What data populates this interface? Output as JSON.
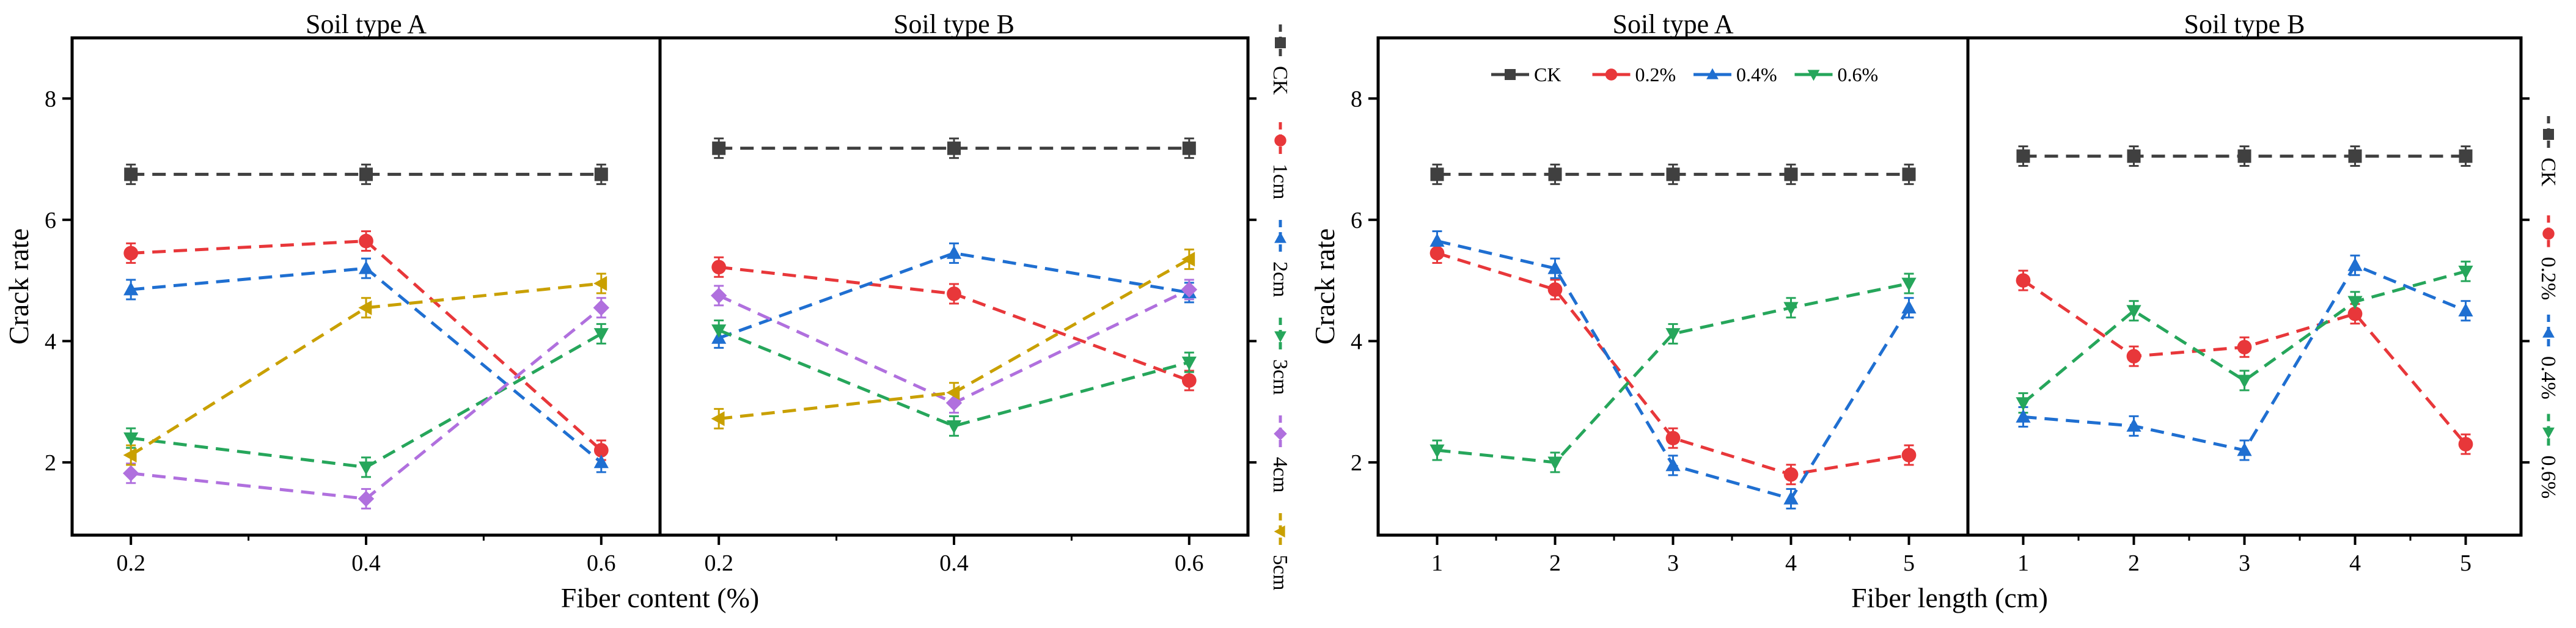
{
  "chart_data": [
    {
      "type": "line",
      "id": "left",
      "xlabel": "Fiber content (%)",
      "ylabel": "Crack rate",
      "ylim": [
        0.8,
        9.0
      ],
      "yticks": [
        2,
        4,
        6,
        8
      ],
      "xlim": [
        0.15,
        0.65
      ],
      "xticks": [
        0.2,
        0.4,
        0.6
      ],
      "xtick_labels": [
        "0.2",
        "0.4",
        "0.6"
      ],
      "legend_position": "right, vertical",
      "panels": [
        {
          "title": "Soil type A",
          "series": [
            {
              "name": "CK",
              "color": "#404040",
              "marker": "square",
              "x": [
                0.2,
                0.4,
                0.6
              ],
              "values": [
                6.75,
                6.75,
                6.75
              ]
            },
            {
              "name": "1cm",
              "color": "#e8373a",
              "marker": "circle",
              "x": [
                0.2,
                0.4,
                0.6
              ],
              "values": [
                5.45,
                5.65,
                2.2
              ]
            },
            {
              "name": "2cm",
              "color": "#1f6fd1",
              "marker": "triangle-up",
              "x": [
                0.2,
                0.4,
                0.6
              ],
              "values": [
                4.85,
                5.2,
                2.0
              ]
            },
            {
              "name": "3cm",
              "color": "#26a65b",
              "marker": "triangle-down",
              "x": [
                0.2,
                0.4,
                0.6
              ],
              "values": [
                2.4,
                1.92,
                4.12
              ]
            },
            {
              "name": "4cm",
              "color": "#b070de",
              "marker": "diamond",
              "x": [
                0.2,
                0.4,
                0.6
              ],
              "values": [
                1.82,
                1.4,
                4.55
              ]
            },
            {
              "name": "5cm",
              "color": "#c9a000",
              "marker": "triangle-left",
              "x": [
                0.2,
                0.4,
                0.6
              ],
              "values": [
                2.12,
                4.55,
                4.95
              ]
            }
          ]
        },
        {
          "title": "Soil type B",
          "series": [
            {
              "name": "CK",
              "color": "#404040",
              "marker": "square",
              "x": [
                0.2,
                0.4,
                0.6
              ],
              "values": [
                7.18,
                7.18,
                7.18
              ]
            },
            {
              "name": "1cm",
              "color": "#e8373a",
              "marker": "circle",
              "x": [
                0.2,
                0.4,
                0.6
              ],
              "values": [
                5.22,
                4.78,
                3.35
              ]
            },
            {
              "name": "2cm",
              "color": "#1f6fd1",
              "marker": "triangle-up",
              "x": [
                0.2,
                0.4,
                0.6
              ],
              "values": [
                4.05,
                5.45,
                4.8
              ]
            },
            {
              "name": "3cm",
              "color": "#26a65b",
              "marker": "triangle-down",
              "x": [
                0.2,
                0.4,
                0.6
              ],
              "values": [
                4.18,
                2.6,
                3.65
              ]
            },
            {
              "name": "4cm",
              "color": "#b070de",
              "marker": "diamond",
              "x": [
                0.2,
                0.4,
                0.6
              ],
              "values": [
                4.75,
                2.98,
                4.85
              ]
            },
            {
              "name": "5cm",
              "color": "#c9a000",
              "marker": "triangle-left",
              "x": [
                0.2,
                0.4,
                0.6
              ],
              "values": [
                2.72,
                3.15,
                5.35
              ]
            }
          ]
        }
      ]
    },
    {
      "type": "line",
      "id": "right",
      "xlabel": "Fiber length (cm)",
      "ylabel": "Crack rate",
      "ylim": [
        0.8,
        9.0
      ],
      "yticks": [
        2,
        4,
        6,
        8
      ],
      "xlim": [
        0.5,
        5.5
      ],
      "xticks": [
        1,
        2,
        3,
        4,
        5
      ],
      "xtick_labels": [
        "1",
        "2",
        "3",
        "4",
        "5"
      ],
      "legend_position": "top of Soil type A panel (horizontal) and right (vertical)",
      "panels": [
        {
          "title": "Soil type A",
          "series": [
            {
              "name": "CK",
              "color": "#404040",
              "marker": "square",
              "x": [
                1,
                2,
                3,
                4,
                5
              ],
              "values": [
                6.75,
                6.75,
                6.75,
                6.75,
                6.75
              ]
            },
            {
              "name": "0.2%",
              "color": "#e8373a",
              "marker": "circle",
              "x": [
                1,
                2,
                3,
                4,
                5
              ],
              "values": [
                5.45,
                4.85,
                2.4,
                1.8,
                2.12
              ]
            },
            {
              "name": "0.4%",
              "color": "#1f6fd1",
              "marker": "triangle-up",
              "x": [
                1,
                2,
                3,
                4,
                5
              ],
              "values": [
                5.65,
                5.2,
                1.95,
                1.4,
                4.55
              ]
            },
            {
              "name": "0.6%",
              "color": "#26a65b",
              "marker": "triangle-down",
              "x": [
                1,
                2,
                3,
                4,
                5
              ],
              "values": [
                2.2,
                2.0,
                4.12,
                4.55,
                4.95
              ]
            }
          ]
        },
        {
          "title": "Soil type B",
          "series": [
            {
              "name": "CK",
              "color": "#404040",
              "marker": "square",
              "x": [
                1,
                2,
                3,
                4,
                5
              ],
              "values": [
                7.05,
                7.05,
                7.05,
                7.05,
                7.05
              ]
            },
            {
              "name": "0.2%",
              "color": "#e8373a",
              "marker": "circle",
              "x": [
                1,
                2,
                3,
                4,
                5
              ],
              "values": [
                5.0,
                3.75,
                3.9,
                4.45,
                2.3
              ]
            },
            {
              "name": "0.4%",
              "color": "#1f6fd1",
              "marker": "triangle-up",
              "x": [
                1,
                2,
                3,
                4,
                5
              ],
              "values": [
                2.75,
                2.6,
                2.2,
                5.25,
                4.5
              ]
            },
            {
              "name": "0.6%",
              "color": "#26a65b",
              "marker": "triangle-down",
              "x": [
                1,
                2,
                3,
                4,
                5
              ],
              "values": [
                2.98,
                4.5,
                3.35,
                4.65,
                5.15
              ]
            }
          ]
        }
      ]
    }
  ]
}
